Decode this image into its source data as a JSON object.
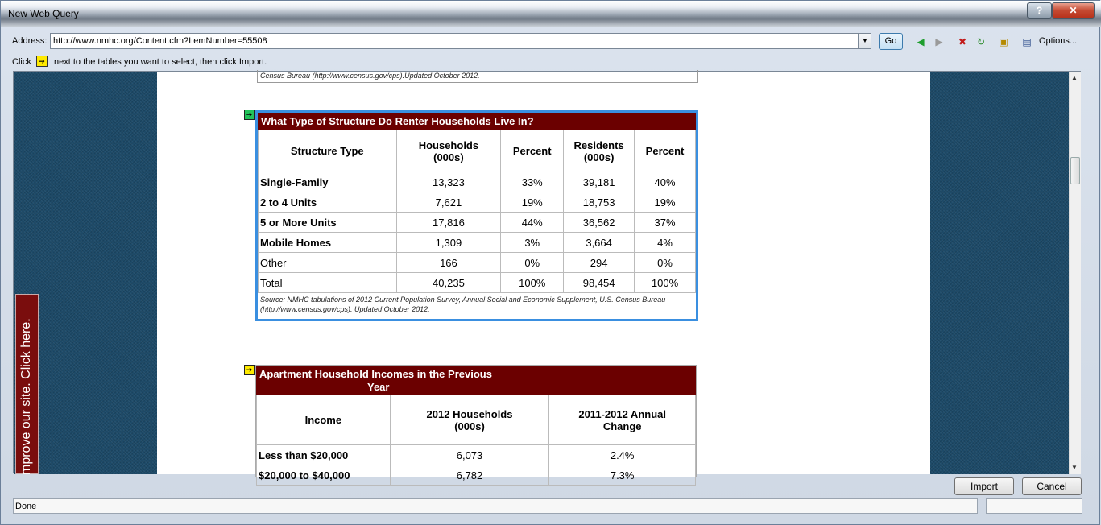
{
  "window": {
    "title": "New Web Query"
  },
  "titlebar": {
    "help": "?",
    "close": "✕"
  },
  "address": {
    "label": "Address:",
    "url": "http://www.nmhc.org/Content.cfm?ItemNumber=55508",
    "go": "Go",
    "options": "Options..."
  },
  "hint": {
    "before": "Click",
    "after": "next to the tables you want to select, then click Import."
  },
  "side_tab": "mprove our site. Click here.",
  "prev_note": "Census Bureau (http://www.census.gov/cps).Updated October 2012.",
  "table1": {
    "title": "What Type of Structure Do Renter Households Live In?",
    "headers": [
      "Structure Type",
      "Households\n(000s)",
      "Percent",
      "Residents\n(000s)",
      "Percent"
    ],
    "rows": [
      [
        "Single-Family",
        "13,323",
        "33%",
        "39,181",
        "40%"
      ],
      [
        "2 to 4 Units",
        "7,621",
        "19%",
        "18,753",
        "19%"
      ],
      [
        "5 or More Units",
        "17,816",
        "44%",
        "36,562",
        "37%"
      ],
      [
        "Mobile Homes",
        "1,309",
        "3%",
        "3,664",
        "4%"
      ],
      [
        "Other",
        "166",
        "0%",
        "294",
        "0%"
      ],
      [
        "Total",
        "40,235",
        "100%",
        "98,454",
        "100%"
      ]
    ],
    "source": "Source: NMHC tabulations of 2012 Current Population Survey, Annual Social and Economic Supplement, U.S. Census Bureau (http://www.census.gov/cps). Updated October 2012."
  },
  "table2": {
    "title_line1": "Apartment Household Incomes in the Previous",
    "title_line2": "Year",
    "headers": [
      "Income",
      "2012 Households\n(000s)",
      "2011-2012 Annual\nChange"
    ],
    "rows": [
      [
        "Less than $20,000",
        "6,073",
        "2.4%"
      ],
      [
        "$20,000 to $40,000",
        "6,782",
        "7.3%"
      ]
    ]
  },
  "buttons": {
    "import": "Import",
    "cancel": "Cancel"
  },
  "status": "Done",
  "colors": {
    "table_header": "#6b0000",
    "selection_border": "#3a8fe0",
    "side_tab": "#7a0d0d"
  }
}
